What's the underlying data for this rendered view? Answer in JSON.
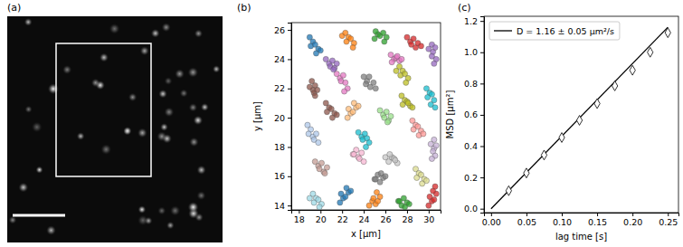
{
  "chart_data": [
    {
      "type": "image",
      "label": "(a)"
    },
    {
      "type": "scatter",
      "label": "(b)",
      "x_label": "x [µm]",
      "y_label": "y [µm]",
      "xlim": [
        17.3,
        31.1
      ],
      "ylim": [
        13.7,
        26.5
      ],
      "xticks": [
        18,
        20,
        22,
        24,
        26,
        28,
        30
      ],
      "yticks": [
        14,
        16,
        18,
        20,
        22,
        24,
        26
      ],
      "marker": "circle",
      "series": [
        {
          "color": "#1f77b4",
          "x": [
            19.0,
            19.3,
            19.1,
            19.5,
            19.8,
            19.6,
            20.0
          ],
          "values": [
            25.5,
            25.2,
            24.9,
            25.0,
            24.7,
            24.4,
            24.6
          ]
        },
        {
          "color": "#ff7f0e",
          "x": [
            22.0,
            22.3,
            22.6,
            22.4,
            22.8,
            23.1,
            23.0
          ],
          "values": [
            25.6,
            25.8,
            25.5,
            25.2,
            25.4,
            25.1,
            24.8
          ]
        },
        {
          "color": "#2ca02c",
          "x": [
            25.0,
            25.3,
            25.1,
            25.5,
            25.8,
            26.1,
            25.9
          ],
          "values": [
            25.4,
            25.7,
            25.9,
            25.6,
            25.8,
            25.5,
            25.2
          ]
        },
        {
          "color": "#d62728",
          "x": [
            28.0,
            28.3,
            28.6,
            28.4,
            28.8,
            29.0,
            29.3
          ],
          "values": [
            25.5,
            25.2,
            25.4,
            25.0,
            24.8,
            25.1,
            24.9
          ]
        },
        {
          "color": "#9467bd",
          "x": [
            30.3,
            30.0,
            30.4,
            30.6,
            30.3,
            30.7,
            30.5
          ],
          "values": [
            25.0,
            24.7,
            24.5,
            24.8,
            24.2,
            24.0,
            23.7
          ]
        },
        {
          "color": "#8c564b",
          "x": [
            19.2,
            19.5,
            19.3,
            19.0,
            19.4,
            19.7,
            19.5
          ],
          "values": [
            22.5,
            22.2,
            21.9,
            22.1,
            21.7,
            21.9,
            21.5
          ]
        },
        {
          "color": "#e377c2",
          "x": [
            21.5,
            21.8,
            22.1,
            21.9,
            22.3,
            22.5,
            22.2
          ],
          "values": [
            23.0,
            22.7,
            22.9,
            22.5,
            22.4,
            22.0,
            21.8
          ]
        },
        {
          "color": "#7f7f7f",
          "x": [
            24.0,
            24.3,
            24.5,
            24.2,
            24.6,
            24.9,
            25.1
          ],
          "values": [
            22.8,
            22.5,
            22.8,
            22.3,
            22.1,
            22.4,
            22.0
          ]
        },
        {
          "color": "#bcbd22",
          "x": [
            27.0,
            27.3,
            27.6,
            27.4,
            27.8,
            28.1,
            27.9
          ],
          "values": [
            23.2,
            23.5,
            23.2,
            22.9,
            23.0,
            22.7,
            22.4
          ]
        },
        {
          "color": "#17becf",
          "x": [
            29.8,
            30.1,
            29.9,
            30.3,
            30.5,
            30.2,
            30.6
          ],
          "values": [
            22.0,
            21.7,
            21.4,
            21.6,
            21.2,
            20.9,
            20.7
          ]
        },
        {
          "color": "#aec7e8",
          "x": [
            18.8,
            19.1,
            18.9,
            19.3,
            19.6,
            19.4,
            19.8
          ],
          "values": [
            19.5,
            19.2,
            18.9,
            18.7,
            18.9,
            18.5,
            18.3
          ]
        },
        {
          "color": "#ffbb78",
          "x": [
            22.5,
            22.8,
            22.6,
            23.0,
            23.3,
            23.1,
            23.5
          ],
          "values": [
            20.0,
            20.3,
            20.6,
            20.4,
            20.7,
            21.0,
            20.8
          ]
        },
        {
          "color": "#98df8a",
          "x": [
            25.5,
            25.8,
            26.1,
            25.9,
            26.3,
            26.5,
            26.2
          ],
          "values": [
            20.5,
            20.2,
            20.4,
            20.0,
            19.8,
            20.1,
            19.7
          ]
        },
        {
          "color": "#ff9896",
          "x": [
            28.5,
            28.8,
            28.6,
            29.0,
            29.3,
            29.1,
            29.5
          ],
          "values": [
            19.8,
            19.5,
            19.2,
            19.4,
            19.1,
            18.8,
            18.9
          ]
        },
        {
          "color": "#c5b0d5",
          "x": [
            30.5,
            30.2,
            30.5,
            30.7,
            30.4,
            30.6,
            30.3
          ],
          "values": [
            18.5,
            18.2,
            17.9,
            18.1,
            17.7,
            17.4,
            17.2
          ]
        },
        {
          "color": "#c49c94",
          "x": [
            19.5,
            19.8,
            20.1,
            19.9,
            20.3,
            20.6,
            20.4
          ],
          "values": [
            17.0,
            16.7,
            16.9,
            16.5,
            16.3,
            16.6,
            16.2
          ]
        },
        {
          "color": "#f7b6d2",
          "x": [
            23.0,
            23.3,
            23.1,
            23.5,
            23.8,
            23.6,
            24.0
          ],
          "values": [
            17.5,
            17.8,
            17.5,
            17.3,
            17.6,
            17.2,
            17.0
          ]
        },
        {
          "color": "#c7c7c7",
          "x": [
            26.0,
            26.3,
            26.6,
            26.4,
            26.8,
            27.1,
            26.9
          ],
          "values": [
            17.3,
            17.0,
            17.3,
            17.5,
            17.2,
            16.9,
            17.1
          ]
        },
        {
          "color": "#dbdb8d",
          "x": [
            28.8,
            29.1,
            28.9,
            29.3,
            29.6,
            29.4,
            29.8
          ],
          "values": [
            16.5,
            16.2,
            15.9,
            16.1,
            15.8,
            15.5,
            15.7
          ]
        },
        {
          "color": "#9edae5",
          "x": [
            19.0,
            19.3,
            19.6,
            19.4,
            19.8,
            20.1,
            19.9
          ],
          "values": [
            14.5,
            14.8,
            14.5,
            14.2,
            14.4,
            14.1,
            13.9
          ]
        },
        {
          "color": "#1f77b4",
          "x": [
            21.8,
            22.1,
            21.9,
            22.3,
            22.6,
            22.4,
            22.8
          ],
          "values": [
            14.2,
            14.5,
            14.8,
            14.6,
            14.9,
            15.2,
            15.0
          ]
        },
        {
          "color": "#ff7f0e",
          "x": [
            24.5,
            24.8,
            25.1,
            24.9,
            25.3,
            25.5,
            25.2
          ],
          "values": [
            14.0,
            14.3,
            14.1,
            14.5,
            14.3,
            14.6,
            14.9
          ]
        },
        {
          "color": "#2ca02c",
          "x": [
            27.2,
            27.5,
            27.3,
            27.7,
            28.0,
            27.8,
            28.2
          ],
          "values": [
            14.3,
            14.0,
            14.3,
            14.5,
            14.2,
            13.9,
            14.1
          ]
        },
        {
          "color": "#d62728",
          "x": [
            30.0,
            30.3,
            30.1,
            30.5,
            30.7,
            30.4,
            30.6
          ],
          "values": [
            14.0,
            14.3,
            14.6,
            14.4,
            14.8,
            15.0,
            15.3
          ]
        },
        {
          "color": "#9467bd",
          "x": [
            20.5,
            20.8,
            21.1,
            20.9,
            21.3,
            21.5,
            21.2
          ],
          "values": [
            24.0,
            23.7,
            23.9,
            23.5,
            23.4,
            23.7,
            23.3
          ]
        },
        {
          "color": "#e377c2",
          "x": [
            26.5,
            26.8,
            26.6,
            27.0,
            27.3,
            27.1,
            27.5
          ],
          "values": [
            24.3,
            24.0,
            23.8,
            24.1,
            23.9,
            24.2,
            24.0
          ]
        },
        {
          "color": "#17becf",
          "x": [
            23.5,
            23.8,
            24.1,
            23.9,
            24.3,
            24.5,
            24.2
          ],
          "values": [
            19.0,
            18.7,
            18.9,
            18.5,
            18.6,
            18.3,
            18.0
          ]
        },
        {
          "color": "#bcbd22",
          "x": [
            27.5,
            27.8,
            27.6,
            28.0,
            28.3,
            28.1,
            28.5
          ],
          "values": [
            21.5,
            21.2,
            20.9,
            21.1,
            20.8,
            21.0,
            20.7
          ]
        },
        {
          "color": "#8c564b",
          "x": [
            20.5,
            20.8,
            20.6,
            21.0,
            21.3,
            21.1,
            21.5
          ],
          "values": [
            21.0,
            20.7,
            20.4,
            20.6,
            20.3,
            20.0,
            20.2
          ]
        },
        {
          "color": "#7f7f7f",
          "x": [
            25.0,
            25.3,
            25.1,
            25.5,
            25.8,
            25.6,
            26.0
          ],
          "values": [
            15.8,
            16.1,
            15.8,
            15.6,
            15.9,
            16.2,
            16.0
          ]
        }
      ]
    },
    {
      "type": "line",
      "label": "(c)",
      "x_label": "lag time [s]",
      "y_label": "MSD [µm²]",
      "xlim": [
        -0.01,
        0.265
      ],
      "ylim": [
        -0.025,
        1.23
      ],
      "xticks": [
        {
          "value": 0,
          "label": "0.00"
        },
        0.05,
        {
          "value": 0.1,
          "label": "0.10"
        },
        0.15,
        {
          "value": 0.2,
          "label": "0.20"
        },
        0.25
      ],
      "yticks": [
        {
          "value": 0,
          "label": "0.0"
        },
        0.2,
        0.4,
        0.6,
        0.8,
        {
          "value": 1,
          "label": "1.0"
        },
        1.2
      ],
      "legend": "upper left",
      "series": [
        {
          "name": "D = 1.16 ± 0.05 µm²/s",
          "type": "line",
          "color": "#000000",
          "line_style": "solid",
          "x": [
            0,
            0.25
          ],
          "values": [
            0,
            1.16
          ]
        },
        {
          "type": "scatter",
          "marker": "diamond",
          "color": "#000000",
          "x": [
            0.025,
            0.05,
            0.075,
            0.1,
            0.125,
            0.15,
            0.175,
            0.2,
            0.225,
            0.25
          ],
          "values": [
            0.115,
            0.228,
            0.343,
            0.455,
            0.565,
            0.672,
            0.785,
            0.885,
            1.0,
            1.125
          ],
          "errors": [
            0.005,
            0.006,
            0.007,
            0.008,
            0.009,
            0.01,
            0.012,
            0.014,
            0.016,
            0.018
          ]
        }
      ]
    }
  ]
}
